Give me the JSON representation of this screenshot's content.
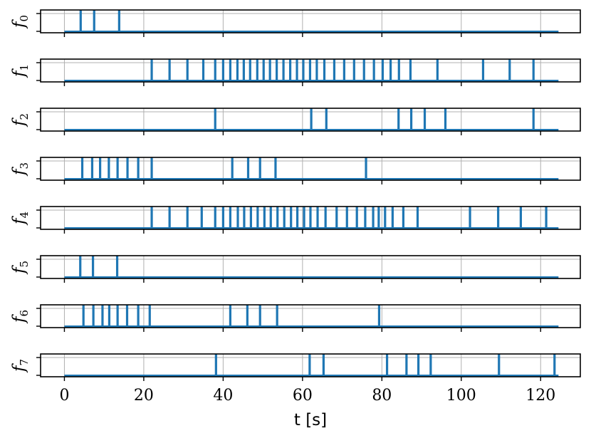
{
  "chart_data": {
    "type": "event-raster",
    "xlabel": "t [s]",
    "xlim": [
      -6,
      130
    ],
    "xticks": [
      0,
      20,
      40,
      60,
      80,
      100,
      120
    ],
    "ylim": [
      0,
      1
    ],
    "baseline_range": [
      0,
      124.5
    ],
    "series_color": "#1f77b4",
    "grid": true,
    "series": [
      {
        "name": "f0",
        "label_main": "f",
        "label_sub": "0",
        "events": [
          4.1,
          7.5,
          13.8
        ]
      },
      {
        "name": "f1",
        "label_main": "f",
        "label_sub": "1",
        "events": [
          22.0,
          26.5,
          31.0,
          35.0,
          38.0,
          40.0,
          41.8,
          43.6,
          45.2,
          46.8,
          48.6,
          50.2,
          51.8,
          53.5,
          55.2,
          56.9,
          58.6,
          60.2,
          61.9,
          63.6,
          65.5,
          68.0,
          70.5,
          73.0,
          75.5,
          78.0,
          80.2,
          82.2,
          84.3,
          87.2,
          94.0,
          105.5,
          112.2,
          118.2
        ]
      },
      {
        "name": "f2",
        "label_main": "f",
        "label_sub": "2",
        "events": [
          38.0,
          62.2,
          66.0,
          84.2,
          87.4,
          90.8,
          96.0,
          118.2
        ]
      },
      {
        "name": "f3",
        "label_main": "f",
        "label_sub": "3",
        "events": [
          4.5,
          7.0,
          9.0,
          11.2,
          13.4,
          15.9,
          18.6,
          22.0,
          42.3,
          46.3,
          49.3,
          53.2,
          76.0
        ]
      },
      {
        "name": "f4",
        "label_main": "f",
        "label_sub": "4",
        "events": [
          22.0,
          26.5,
          31.0,
          34.6,
          38.0,
          40.0,
          41.8,
          43.7,
          45.3,
          47.0,
          48.7,
          50.4,
          52.0,
          53.7,
          55.4,
          57.1,
          58.7,
          60.4,
          62.0,
          63.8,
          65.8,
          68.6,
          71.2,
          73.7,
          75.8,
          77.8,
          79.2,
          80.8,
          82.7,
          85.4,
          89.0,
          102.2,
          109.3,
          115.0,
          121.4
        ]
      },
      {
        "name": "f5",
        "label_main": "f",
        "label_sub": "5",
        "events": [
          4.0,
          7.2,
          13.3
        ]
      },
      {
        "name": "f6",
        "label_main": "f",
        "label_sub": "6",
        "events": [
          4.8,
          7.3,
          9.6,
          11.3,
          13.4,
          15.8,
          18.6,
          21.5,
          41.8,
          46.1,
          49.3,
          53.6,
          79.3
        ]
      },
      {
        "name": "f7",
        "label_main": "f",
        "label_sub": "7",
        "events": [
          38.2,
          61.8,
          65.3,
          81.3,
          86.2,
          89.2,
          92.3,
          109.5,
          123.5
        ]
      }
    ]
  }
}
